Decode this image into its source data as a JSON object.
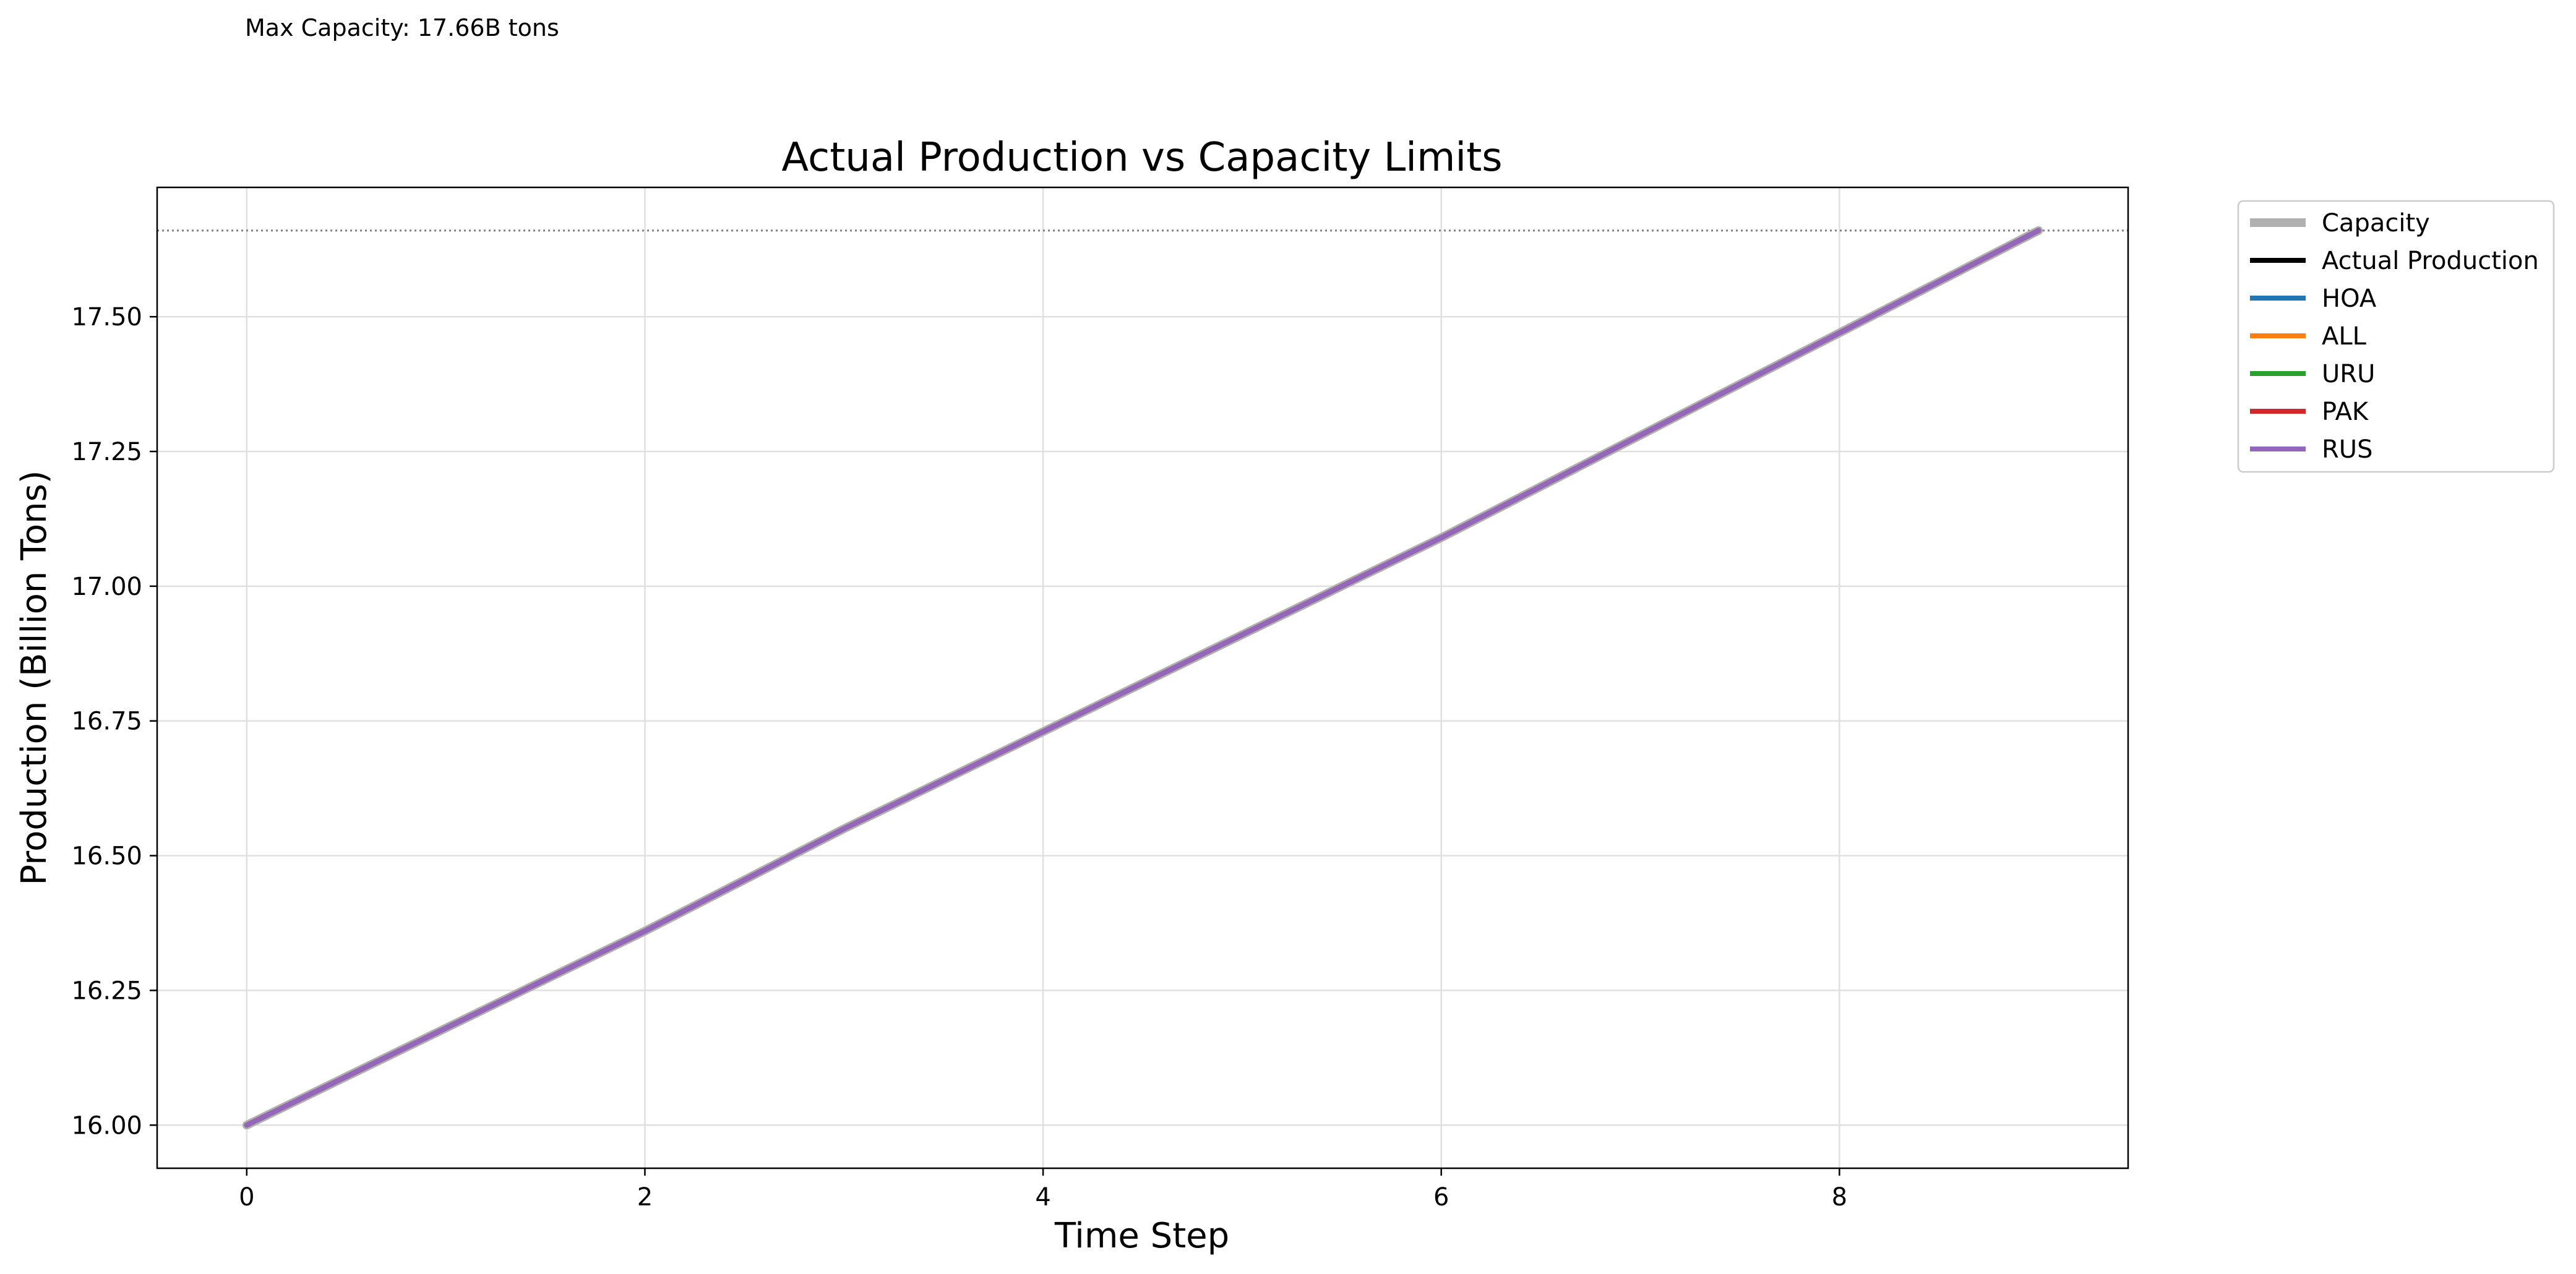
{
  "annotation": "Max Capacity: 17.66B tons",
  "chart_data": {
    "type": "line",
    "title": "Actual Production vs Capacity Limits",
    "xlabel": "Time Step",
    "ylabel": "Production (Billion Tons)",
    "xlim": [
      -0.45,
      9.45
    ],
    "ylim": [
      15.92,
      17.74
    ],
    "xticks": [
      0,
      2,
      4,
      6,
      8
    ],
    "yticks": [
      16.0,
      16.25,
      16.5,
      16.75,
      17.0,
      17.25,
      17.5
    ],
    "ytick_labels": [
      "16.00",
      "16.25",
      "16.50",
      "16.75",
      "17.00",
      "17.25",
      "17.50"
    ],
    "grid": true,
    "legend_position": "outside upper right",
    "x": [
      0,
      1,
      2,
      3,
      4,
      5,
      6,
      7,
      8,
      9
    ],
    "capacity_line": {
      "value": 17.66,
      "style": "dotted",
      "color": "#808080"
    },
    "series": [
      {
        "name": "Capacity",
        "color": "#b0b0b0",
        "width": "thick",
        "values": [
          16.0,
          16.18,
          16.36,
          16.55,
          16.73,
          16.91,
          17.09,
          17.28,
          17.47,
          17.66
        ]
      },
      {
        "name": "Actual Production",
        "color": "#000000",
        "width": "normal",
        "values": [
          16.0,
          16.18,
          16.36,
          16.55,
          16.73,
          16.91,
          17.09,
          17.28,
          17.47,
          17.66
        ]
      },
      {
        "name": "HOA",
        "color": "#1f77b4",
        "width": "normal",
        "values": [
          16.0,
          16.18,
          16.36,
          16.55,
          16.73,
          16.91,
          17.09,
          17.28,
          17.47,
          17.66
        ]
      },
      {
        "name": "ALL",
        "color": "#ff7f0e",
        "width": "normal",
        "values": [
          16.0,
          16.18,
          16.36,
          16.55,
          16.73,
          16.91,
          17.09,
          17.28,
          17.47,
          17.66
        ]
      },
      {
        "name": "URU",
        "color": "#2ca02c",
        "width": "normal",
        "values": [
          16.0,
          16.18,
          16.36,
          16.55,
          16.73,
          16.91,
          17.09,
          17.28,
          17.47,
          17.66
        ]
      },
      {
        "name": "PAK",
        "color": "#d62728",
        "width": "normal",
        "values": [
          16.0,
          16.18,
          16.36,
          16.55,
          16.73,
          16.91,
          17.09,
          17.28,
          17.47,
          17.66
        ]
      },
      {
        "name": "RUS",
        "color": "#9467bd",
        "width": "normal",
        "values": [
          16.0,
          16.18,
          16.36,
          16.55,
          16.73,
          16.91,
          17.09,
          17.28,
          17.47,
          17.66
        ]
      }
    ]
  }
}
